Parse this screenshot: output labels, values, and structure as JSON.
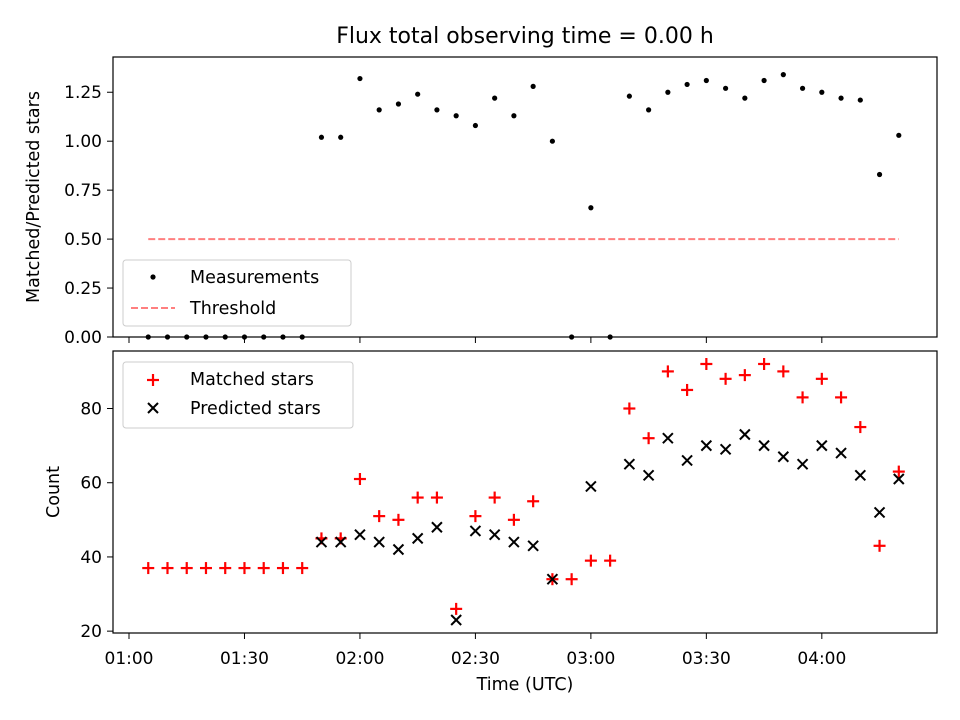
{
  "title": "Flux total observing time = 0.00 h",
  "chart_data": [
    {
      "type": "scatter",
      "ylabel": "Matched/Predicted stars",
      "ylim": [
        0,
        1.43
      ],
      "yticks": [
        "0.00",
        "0.25",
        "0.50",
        "0.75",
        "1.00",
        "1.25"
      ],
      "legend_position": "lower-left",
      "series": [
        {
          "name": "Measurements",
          "marker": "dot",
          "color": "#000000",
          "points": [
            [
              "01:05",
              0
            ],
            [
              "01:10",
              0
            ],
            [
              "01:15",
              0
            ],
            [
              "01:20",
              0
            ],
            [
              "01:25",
              0
            ],
            [
              "01:30",
              0
            ],
            [
              "01:35",
              0
            ],
            [
              "01:40",
              0
            ],
            [
              "01:45",
              0
            ],
            [
              "01:50",
              1.02
            ],
            [
              "01:55",
              1.02
            ],
            [
              "02:00",
              1.32
            ],
            [
              "02:05",
              1.16
            ],
            [
              "02:10",
              1.19
            ],
            [
              "02:15",
              1.24
            ],
            [
              "02:20",
              1.16
            ],
            [
              "02:25",
              1.13
            ],
            [
              "02:30",
              1.08
            ],
            [
              "02:35",
              1.22
            ],
            [
              "02:40",
              1.13
            ],
            [
              "02:45",
              1.28
            ],
            [
              "02:50",
              1.0
            ],
            [
              "02:55",
              0
            ],
            [
              "03:00",
              0.66
            ],
            [
              "03:05",
              0
            ],
            [
              "03:10",
              1.23
            ],
            [
              "03:15",
              1.16
            ],
            [
              "03:20",
              1.25
            ],
            [
              "03:25",
              1.29
            ],
            [
              "03:30",
              1.31
            ],
            [
              "03:35",
              1.27
            ],
            [
              "03:40",
              1.22
            ],
            [
              "03:45",
              1.31
            ],
            [
              "03:50",
              1.34
            ],
            [
              "03:55",
              1.27
            ],
            [
              "04:00",
              1.25
            ],
            [
              "04:05",
              1.22
            ],
            [
              "04:10",
              1.21
            ],
            [
              "04:15",
              0.83
            ],
            [
              "04:20",
              1.03
            ]
          ]
        },
        {
          "name": "Threshold",
          "marker": "dashed-line",
          "color": "#ff7f7f",
          "points": [
            [
              "01:05",
              0.5
            ],
            [
              "04:20",
              0.5
            ]
          ]
        }
      ]
    },
    {
      "type": "scatter",
      "xlabel": "Time (UTC)",
      "ylabel": "Count",
      "ylim": [
        19.5,
        95.5
      ],
      "yticks": [
        "20",
        "40",
        "60",
        "80"
      ],
      "xticks": [
        "01:00",
        "01:30",
        "02:00",
        "02:30",
        "03:00",
        "03:30",
        "04:00"
      ],
      "legend_position": "upper-left",
      "series": [
        {
          "name": "Matched stars",
          "marker": "plus",
          "color": "#ff0000",
          "points": [
            [
              "01:05",
              37
            ],
            [
              "01:10",
              37
            ],
            [
              "01:15",
              37
            ],
            [
              "01:20",
              37
            ],
            [
              "01:25",
              37
            ],
            [
              "01:30",
              37
            ],
            [
              "01:35",
              37
            ],
            [
              "01:40",
              37
            ],
            [
              "01:45",
              37
            ],
            [
              "01:50",
              45
            ],
            [
              "01:55",
              45
            ],
            [
              "02:00",
              61
            ],
            [
              "02:05",
              51
            ],
            [
              "02:10",
              50
            ],
            [
              "02:15",
              56
            ],
            [
              "02:20",
              56
            ],
            [
              "02:25",
              26
            ],
            [
              "02:30",
              51
            ],
            [
              "02:35",
              56
            ],
            [
              "02:40",
              50
            ],
            [
              "02:45",
              55
            ],
            [
              "02:50",
              34
            ],
            [
              "02:55",
              34
            ],
            [
              "03:00",
              39
            ],
            [
              "03:05",
              39
            ],
            [
              "03:10",
              80
            ],
            [
              "03:15",
              72
            ],
            [
              "03:20",
              90
            ],
            [
              "03:25",
              85
            ],
            [
              "03:30",
              92
            ],
            [
              "03:35",
              88
            ],
            [
              "03:40",
              89
            ],
            [
              "03:45",
              92
            ],
            [
              "03:50",
              90
            ],
            [
              "03:55",
              83
            ],
            [
              "04:00",
              88
            ],
            [
              "04:05",
              83
            ],
            [
              "04:10",
              75
            ],
            [
              "04:15",
              43
            ],
            [
              "04:20",
              63
            ]
          ]
        },
        {
          "name": "Predicted stars",
          "marker": "x",
          "color": "#000000",
          "points": [
            [
              "01:50",
              44
            ],
            [
              "01:55",
              44
            ],
            [
              "02:00",
              46
            ],
            [
              "02:05",
              44
            ],
            [
              "02:10",
              42
            ],
            [
              "02:15",
              45
            ],
            [
              "02:20",
              48
            ],
            [
              "02:25",
              23
            ],
            [
              "02:30",
              47
            ],
            [
              "02:35",
              46
            ],
            [
              "02:40",
              44
            ],
            [
              "02:45",
              43
            ],
            [
              "02:50",
              34
            ],
            [
              "03:00",
              59
            ],
            [
              "03:10",
              65
            ],
            [
              "03:15",
              62
            ],
            [
              "03:20",
              72
            ],
            [
              "03:25",
              66
            ],
            [
              "03:30",
              70
            ],
            [
              "03:35",
              69
            ],
            [
              "03:40",
              73
            ],
            [
              "03:45",
              70
            ],
            [
              "03:50",
              67
            ],
            [
              "03:55",
              65
            ],
            [
              "04:00",
              70
            ],
            [
              "04:05",
              68
            ],
            [
              "04:10",
              62
            ],
            [
              "04:15",
              52
            ],
            [
              "04:20",
              61
            ]
          ]
        }
      ]
    }
  ]
}
